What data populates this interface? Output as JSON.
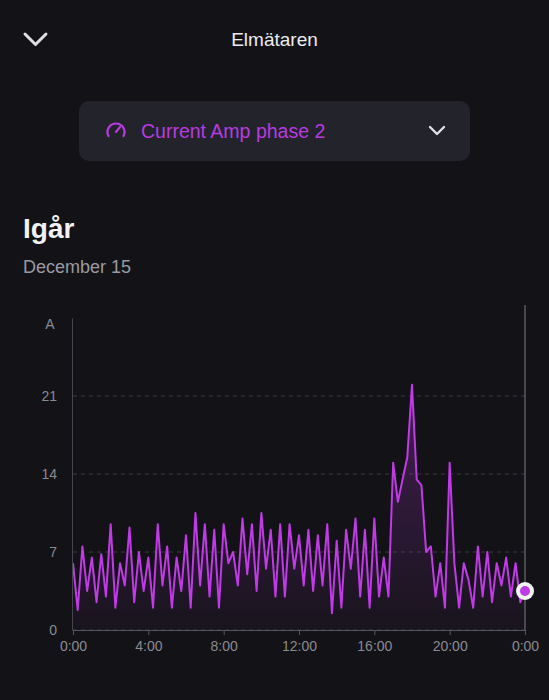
{
  "header": {
    "title": "Elmätaren",
    "selector": "Current Amp phase 2"
  },
  "chart_data": {
    "type": "area",
    "title": "Igår",
    "subtitle": "December 15",
    "ylabel": "A",
    "color": "#c03ae6",
    "x": [
      0,
      0.25,
      0.5,
      0.75,
      1,
      1.25,
      1.5,
      1.75,
      2,
      2.25,
      2.5,
      2.75,
      3,
      3.25,
      3.5,
      3.75,
      4,
      4.25,
      4.5,
      4.75,
      5,
      5.25,
      5.5,
      5.75,
      6,
      6.25,
      6.5,
      6.75,
      7,
      7.25,
      7.5,
      7.75,
      8,
      8.25,
      8.5,
      8.75,
      9,
      9.25,
      9.5,
      9.75,
      10,
      10.25,
      10.5,
      10.75,
      11,
      11.25,
      11.5,
      11.75,
      12,
      12.25,
      12.5,
      12.75,
      13,
      13.25,
      13.5,
      13.75,
      14,
      14.25,
      14.5,
      14.75,
      15,
      15.25,
      15.5,
      15.75,
      16,
      16.25,
      16.5,
      16.75,
      17,
      17.25,
      17.5,
      17.75,
      18,
      18.25,
      18.5,
      18.75,
      19,
      19.25,
      19.5,
      19.75,
      20,
      20.25,
      20.5,
      20.75,
      21,
      21.25,
      21.5,
      21.75,
      22,
      22.25,
      22.5,
      22.75,
      23,
      23.25,
      23.5,
      23.75,
      24
    ],
    "values": [
      6.0,
      1.8,
      7.5,
      3.5,
      6.5,
      2.5,
      6.8,
      3.0,
      9.5,
      2.0,
      6.0,
      4.0,
      9.2,
      2.5,
      7.0,
      3.5,
      6.5,
      2.0,
      9.5,
      4.0,
      7.5,
      2.0,
      6.5,
      3.5,
      8.5,
      2.0,
      10.5,
      4.0,
      9.5,
      3.0,
      9.0,
      2.0,
      9.5,
      6.0,
      7.0,
      4.0,
      10.0,
      5.0,
      9.5,
      3.5,
      10.5,
      5.5,
      9.0,
      3.0,
      9.5,
      3.0,
      9.5,
      5.5,
      8.5,
      4.0,
      9.0,
      3.5,
      8.5,
      4.0,
      9.5,
      1.5,
      8.0,
      2.0,
      9.0,
      5.5,
      10.0,
      3.0,
      9.0,
      2.0,
      10.0,
      3.0,
      6.5,
      3.0,
      15.0,
      11.5,
      13.5,
      15.5,
      22.0,
      13.5,
      13.0,
      7.0,
      7.5,
      3.0,
      6.0,
      2.0,
      15.0,
      6.0,
      2.0,
      6.0,
      4.5,
      2.0,
      7.5,
      3.0,
      7.0,
      2.5,
      6.0,
      4.0,
      6.5,
      3.0,
      6.0,
      2.5,
      3.5
    ],
    "xlim": [
      0,
      24
    ],
    "xticks": [
      {
        "value": 0,
        "label": "0:00"
      },
      {
        "value": 4,
        "label": "4:00"
      },
      {
        "value": 8,
        "label": "8:00"
      },
      {
        "value": 12,
        "label": "12:00"
      },
      {
        "value": 16,
        "label": "16:00"
      },
      {
        "value": 20,
        "label": "20:00"
      },
      {
        "value": 24,
        "label": "0:00"
      }
    ],
    "ylim": [
      0,
      28
    ],
    "yticks": [
      0,
      7,
      14,
      21
    ],
    "grid": true
  }
}
